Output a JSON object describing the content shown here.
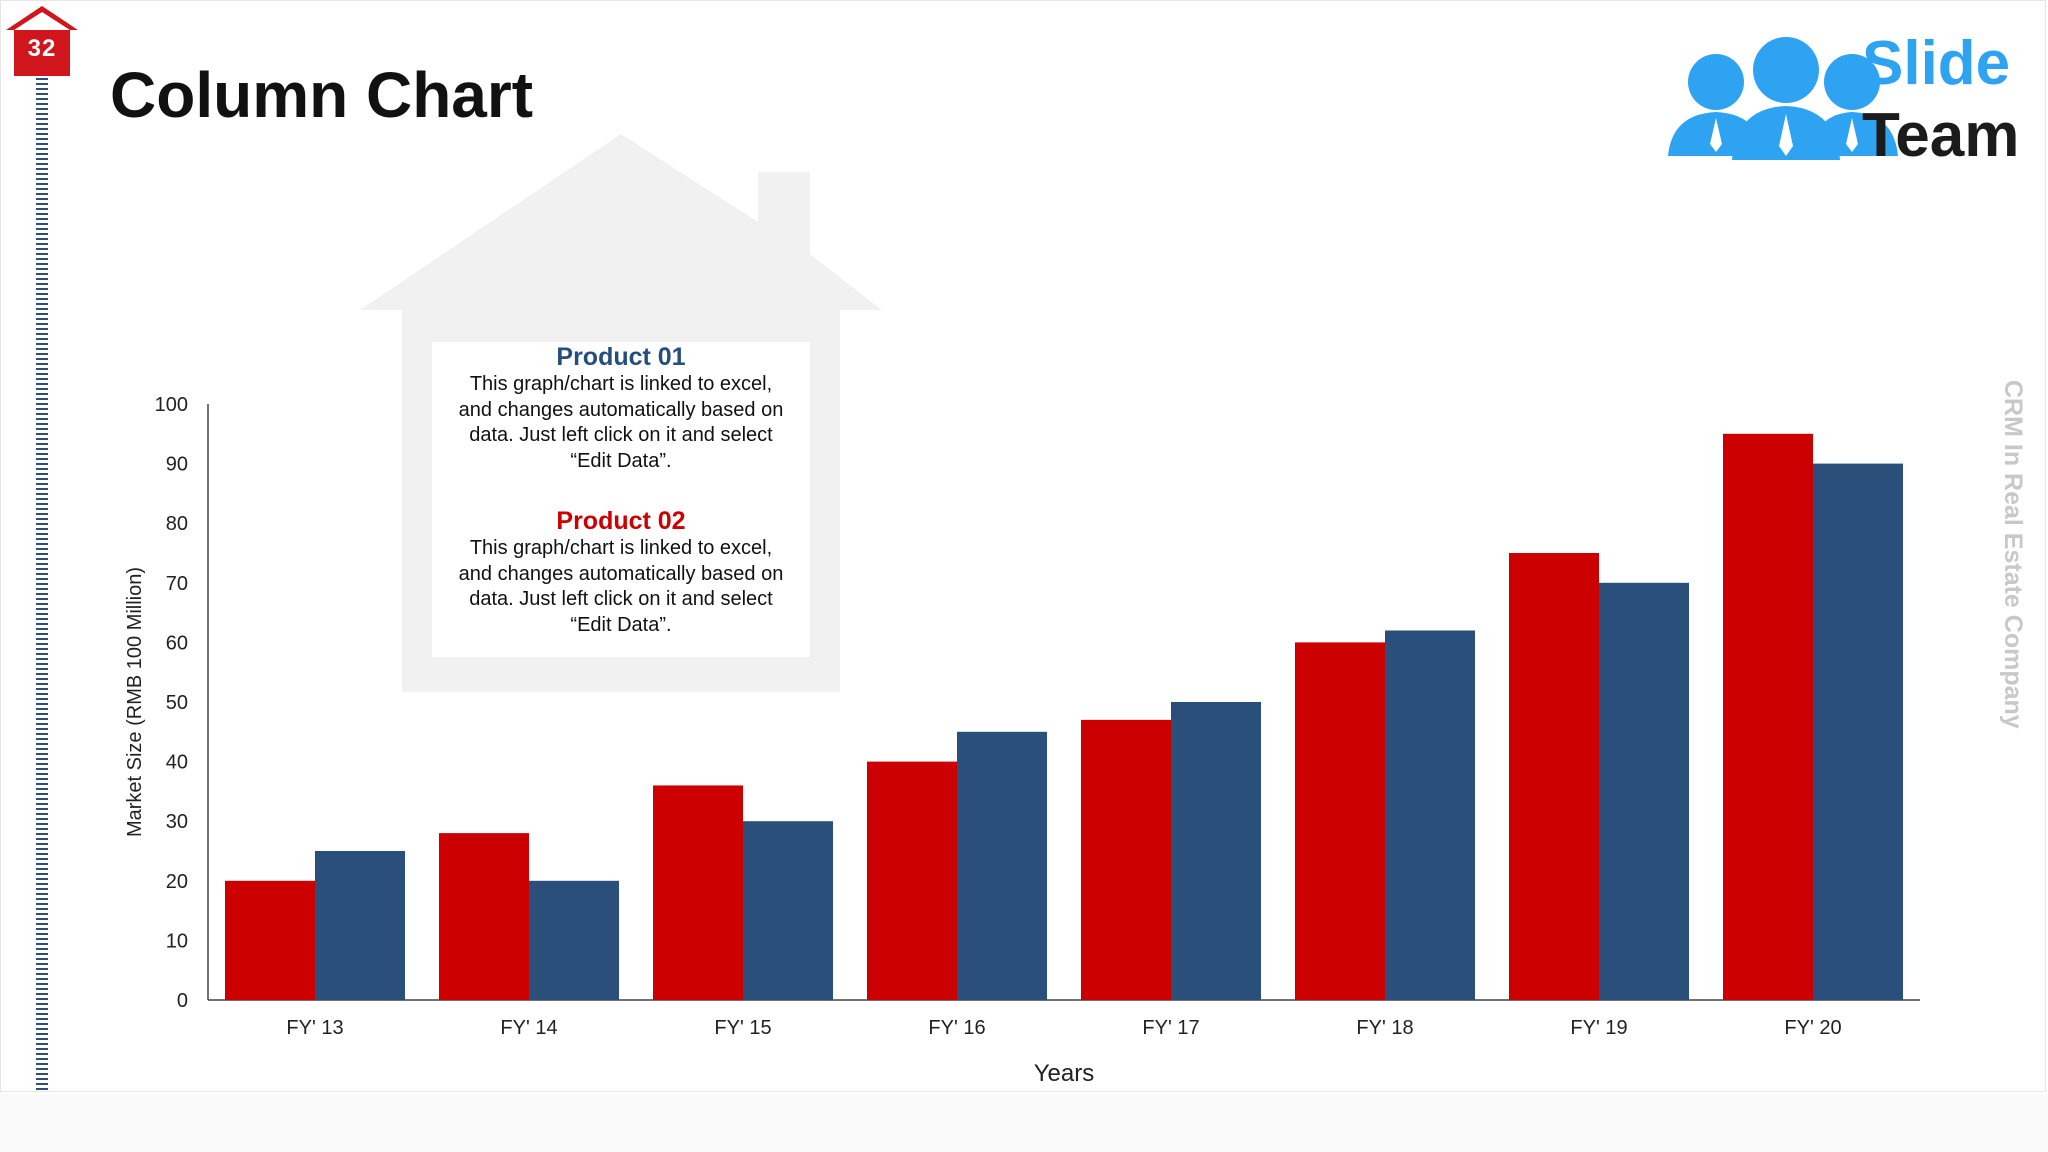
{
  "slide": {
    "number": "32",
    "title": "Column Chart",
    "side_text": "CRM In Real Estate Company"
  },
  "logo": {
    "line1": "Slide",
    "line2": "Team",
    "icon": "people-group-icon"
  },
  "callouts": [
    {
      "title": "Product 01",
      "text": [
        "This graph/chart is linked to excel,",
        "and changes automatically based on",
        "data. Just left click on it and select",
        "“Edit Data”."
      ],
      "color": "#264e7c"
    },
    {
      "title": "Product 02",
      "text": [
        "This graph/chart is linked to excel,",
        "and changes automatically based on",
        "data. Just left click on it and select",
        "“Edit Data”."
      ],
      "color": "#cc0000"
    }
  ],
  "colors": {
    "red": "#cc0000",
    "navy": "#294f7a",
    "badge": "#d0161c"
  },
  "chart_data": {
    "type": "bar",
    "categories": [
      "FY' 13",
      "FY' 14",
      "FY' 15",
      "FY' 16",
      "FY' 17",
      "FY' 18",
      "FY' 19",
      "FY' 20"
    ],
    "series": [
      {
        "values": [
          20,
          28,
          36,
          40,
          47,
          60,
          75,
          95
        ],
        "color": "#cc0000"
      },
      {
        "values": [
          25,
          20,
          30,
          45,
          50,
          62,
          70,
          90
        ],
        "color": "#294f7a"
      }
    ],
    "xlabel": "Years",
    "ylabel": "Market Size (RMB 100 Million)",
    "ylim": [
      0,
      100
    ],
    "yticks": [
      0,
      10,
      20,
      30,
      40,
      50,
      60,
      70,
      80,
      90,
      100
    ],
    "grid": false,
    "legend": "none"
  }
}
